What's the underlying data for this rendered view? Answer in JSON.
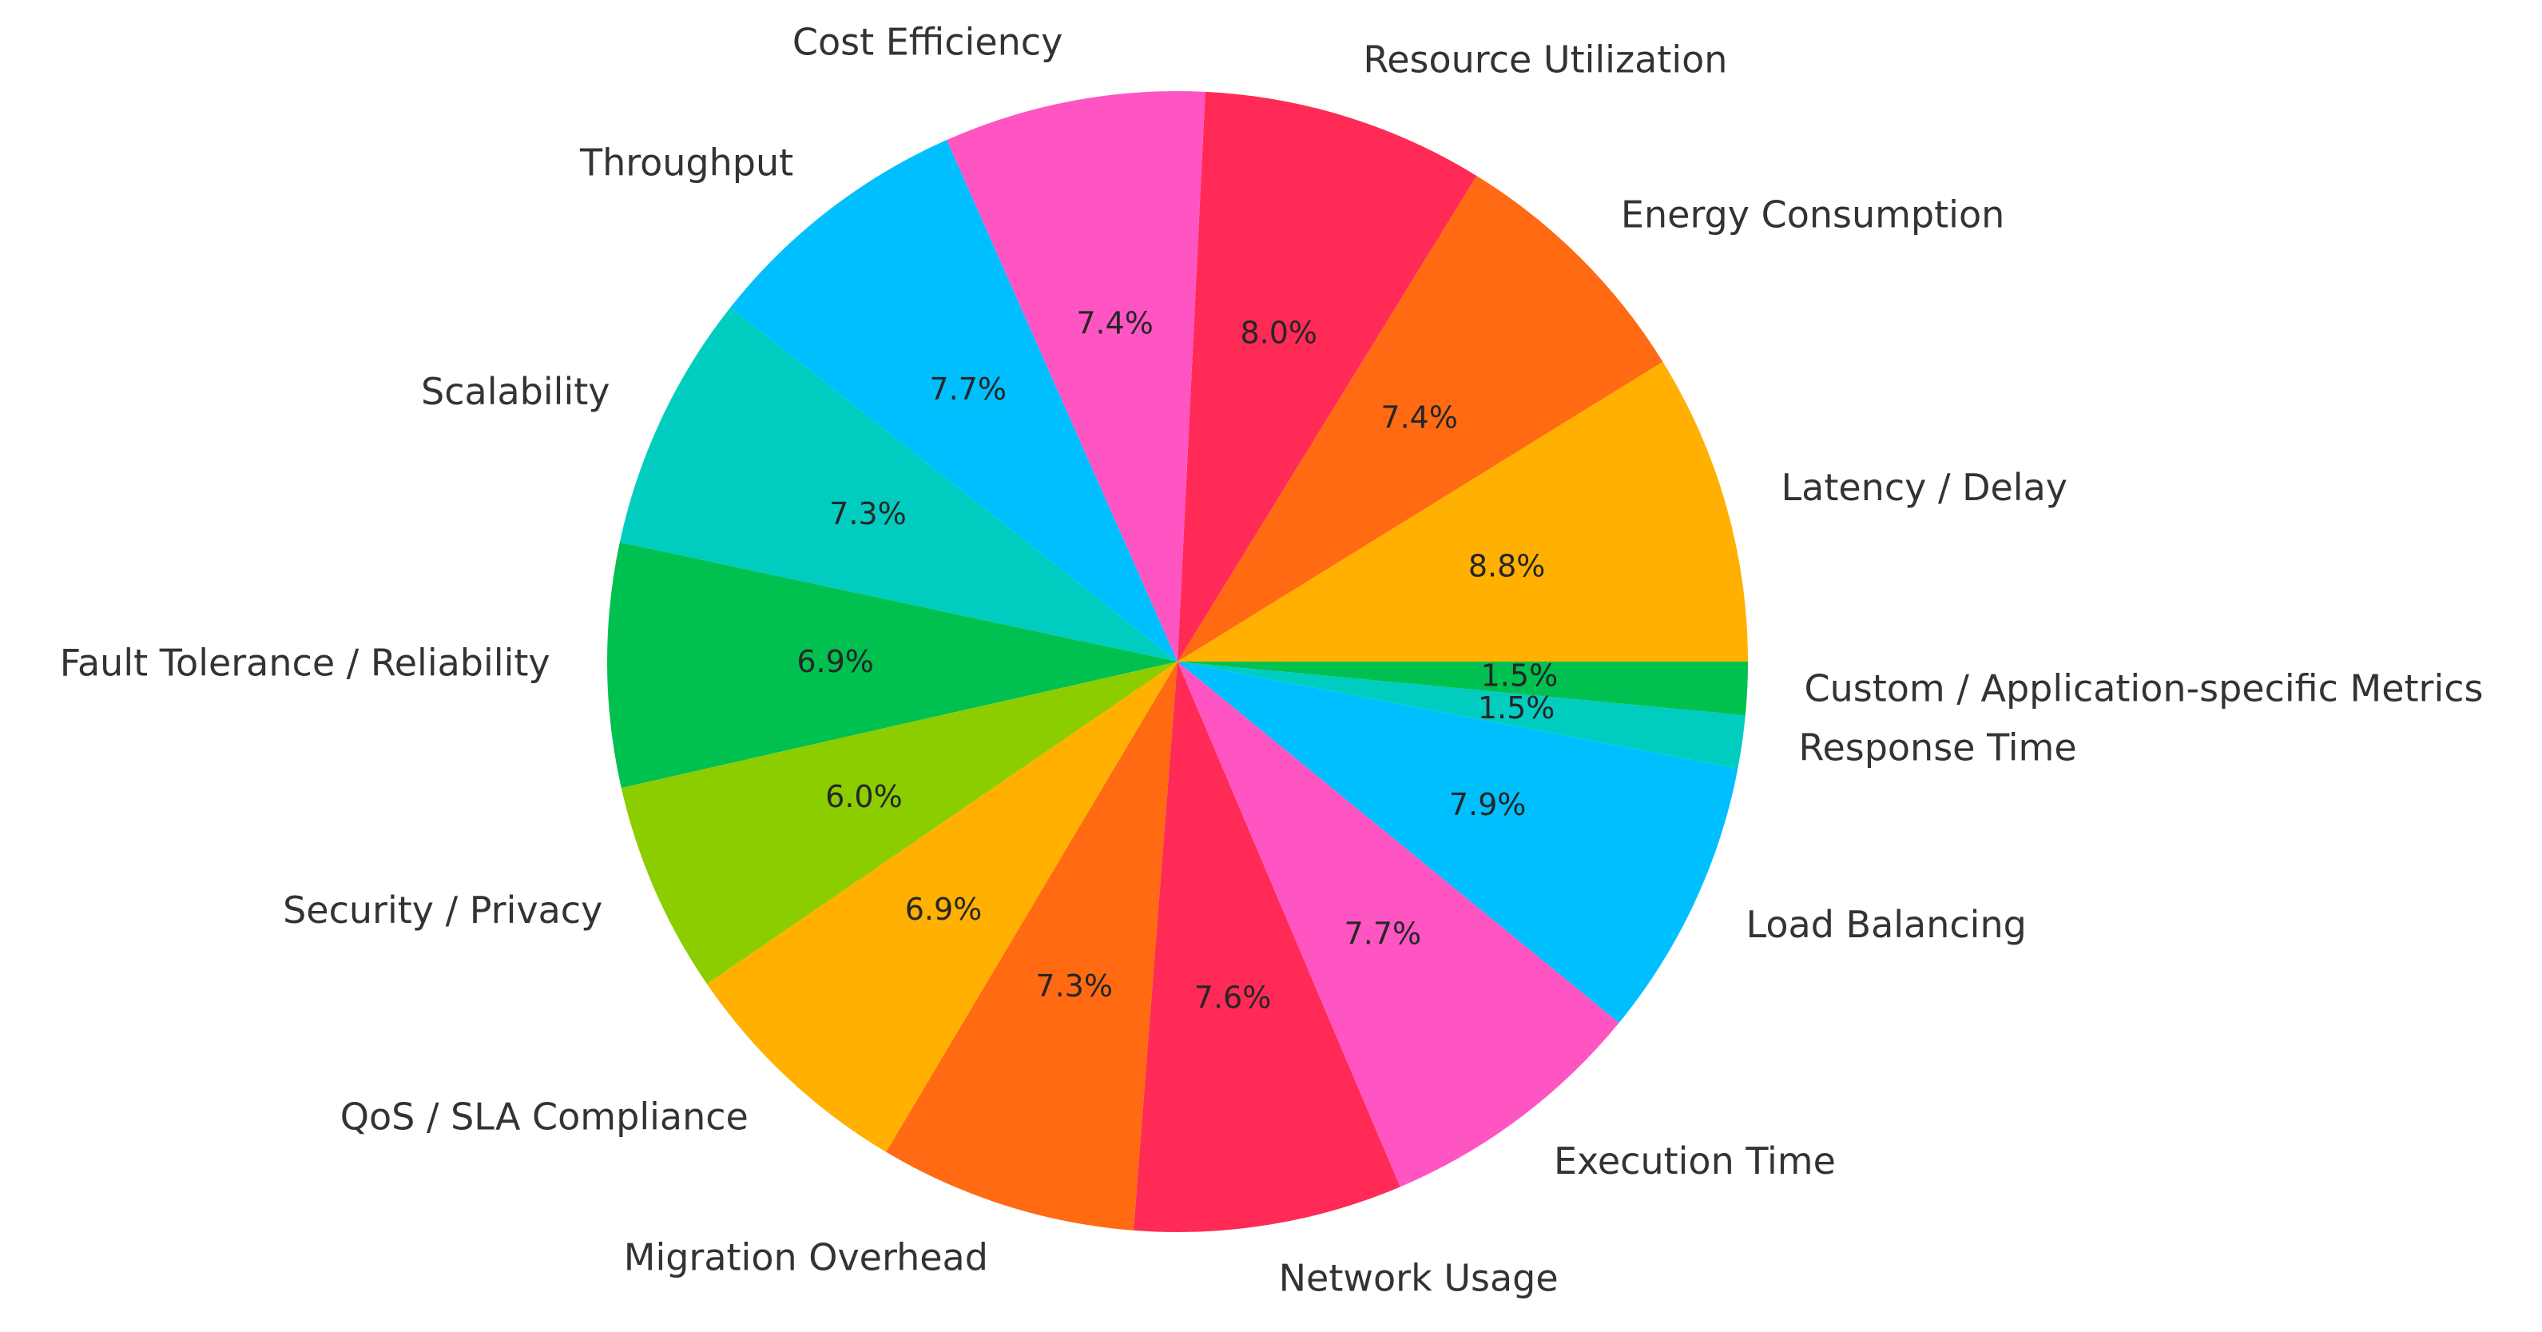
{
  "chart_data": {
    "type": "pie",
    "categories": [
      "Latency / Delay",
      "Energy Consumption",
      "Resource Utilization",
      "Cost Efficiency",
      "Throughput",
      "Scalability",
      "Fault Tolerance / Reliability",
      "Security / Privacy",
      "QoS / SLA Compliance",
      "Migration Overhead",
      "Network Usage",
      "Execution Time",
      "Load Balancing",
      "Response Time",
      "Custom / Application-specific Metrics"
    ],
    "values": [
      8.8,
      7.4,
      8.0,
      7.4,
      7.7,
      7.3,
      6.9,
      6.0,
      6.9,
      7.3,
      7.6,
      7.7,
      7.9,
      1.5,
      1.5
    ],
    "value_labels": [
      "8.8%",
      "7.4%",
      "8.0%",
      "7.4%",
      "7.7%",
      "7.3%",
      "6.9%",
      "6.0%",
      "6.9%",
      "7.3%",
      "7.6%",
      "7.7%",
      "7.9%",
      "1.5%",
      "1.5%"
    ],
    "colors": [
      "#ffb000",
      "#ff6a13",
      "#ff2a55",
      "#ff55c3",
      "#00bfff",
      "#00cdc0",
      "#00c050",
      "#8ccd00",
      "#ffb000",
      "#ff6a13",
      "#ff2a55",
      "#ff55c3",
      "#00bfff",
      "#00cdc0",
      "#00c050"
    ]
  }
}
